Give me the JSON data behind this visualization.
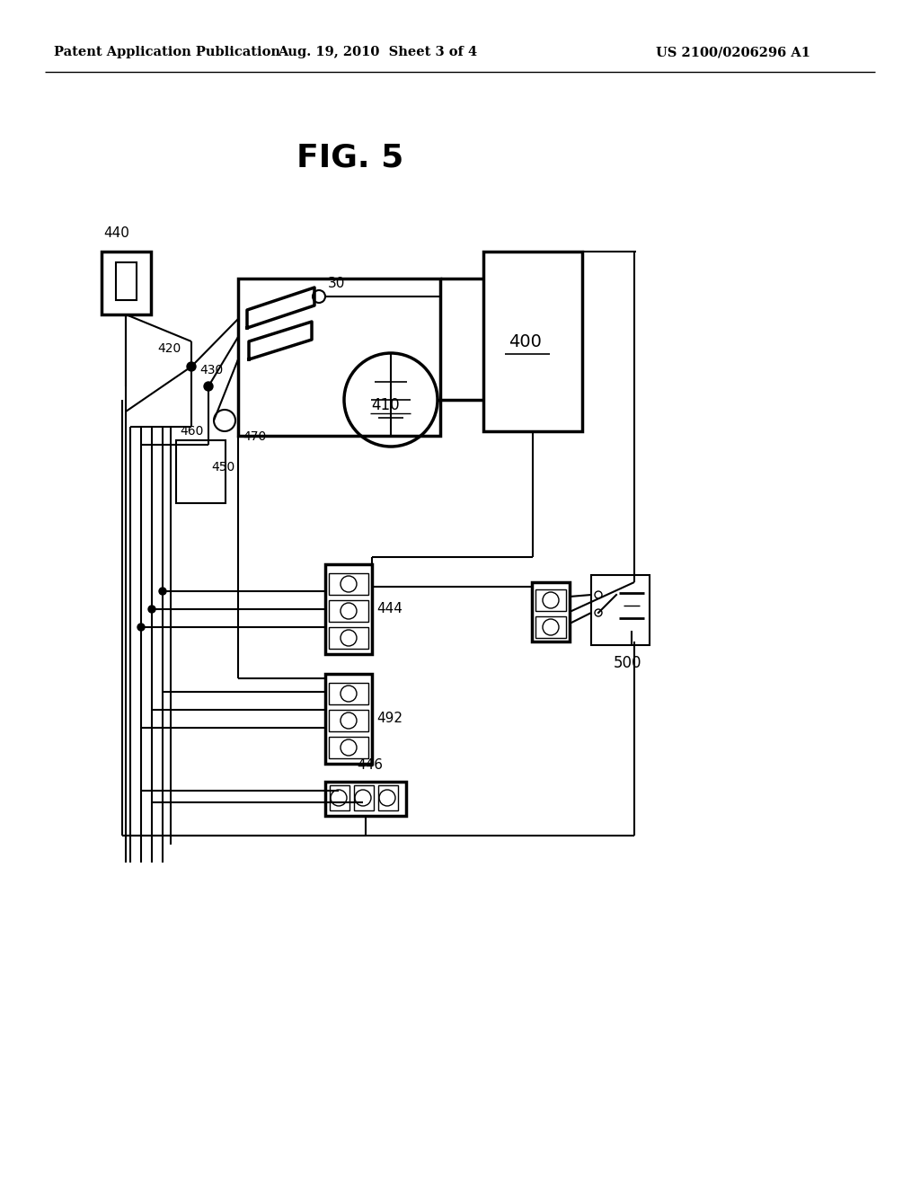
{
  "bg_color": "#ffffff",
  "line_color": "#000000",
  "header_left": "Patent Application Publication",
  "header_center": "Aug. 19, 2010  Sheet 3 of 4",
  "header_right": "US 2100/0206296 A1",
  "fig_title": "FIG. 5"
}
